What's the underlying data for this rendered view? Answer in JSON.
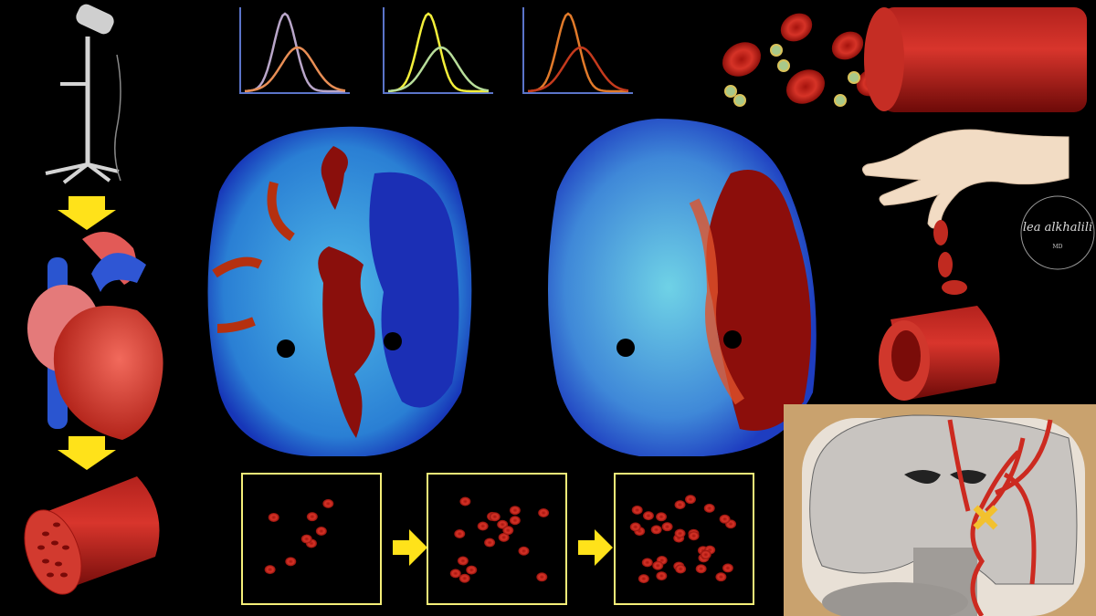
{
  "watermark": {
    "name": "lea alkhalili",
    "credential": "MD"
  }
}
